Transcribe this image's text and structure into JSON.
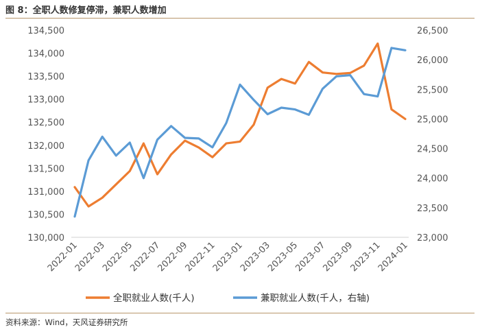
{
  "title": "图 8：全职人数修复停滞，兼职人数增加",
  "source": "资料来源：Wind，天风证券研究所",
  "colors": {
    "full_time": "#ed7d31",
    "part_time": "#5b9bd5",
    "rule": "#b8956a"
  },
  "chart_data": {
    "type": "line",
    "x": [
      "2022-01",
      "2022-02",
      "2022-03",
      "2022-04",
      "2022-05",
      "2022-06",
      "2022-07",
      "2022-08",
      "2022-09",
      "2022-10",
      "2022-11",
      "2022-12",
      "2023-01",
      "2023-02",
      "2023-03",
      "2023-04",
      "2023-05",
      "2023-06",
      "2023-07",
      "2023-08",
      "2023-09",
      "2023-10",
      "2023-11",
      "2023-12",
      "2024-01"
    ],
    "x_tick_labels": [
      "2022-01",
      "2022-03",
      "2022-05",
      "2022-07",
      "2022-09",
      "2022-11",
      "2023-01",
      "2023-03",
      "2023-05",
      "2023-07",
      "2023-09",
      "2023-11",
      "2024-01"
    ],
    "series": [
      {
        "name": "全职就业人数(千人)",
        "axis": "left",
        "color": "#ed7d31",
        "values": [
          131090,
          130670,
          130860,
          131150,
          131440,
          132040,
          131370,
          131800,
          132100,
          131950,
          131740,
          132040,
          132080,
          132450,
          133250,
          133440,
          133340,
          133810,
          133580,
          133550,
          133570,
          133730,
          134210,
          132780,
          132570
        ]
      },
      {
        "name": "兼职就业人数(千人，右轴)",
        "axis": "right",
        "color": "#5b9bd5",
        "values": [
          23350,
          24300,
          24700,
          24380,
          24600,
          24000,
          24650,
          24880,
          24680,
          24670,
          24520,
          24930,
          25580,
          25320,
          25080,
          25190,
          25160,
          25070,
          25510,
          25720,
          25740,
          25420,
          25380,
          26200,
          26160
        ]
      }
    ],
    "y_left": {
      "min": 130000,
      "max": 134500,
      "ticks": [
        "130,000",
        "130,500",
        "131,000",
        "131,500",
        "132,000",
        "132,500",
        "133,000",
        "133,500",
        "134,000",
        "134,500"
      ]
    },
    "y_right": {
      "min": 23000,
      "max": 26500,
      "ticks": [
        "23,000",
        "23,500",
        "24,000",
        "24,500",
        "25,000",
        "25,500",
        "26,000",
        "26,500"
      ]
    },
    "grid": false,
    "legend_position": "bottom"
  }
}
